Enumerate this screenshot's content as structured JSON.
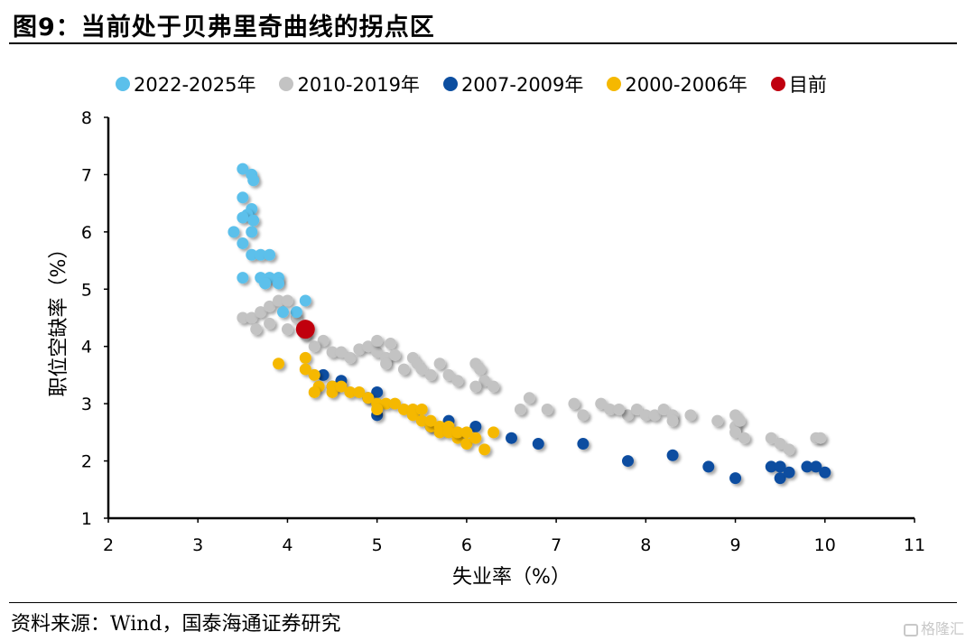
{
  "title": "图9：当前处于贝弗里奇曲线的拐点区",
  "source": "资料来源：Wind，国泰海通证券研究",
  "watermark": "格隆汇",
  "chart_data": {
    "type": "scatter",
    "xlabel": "失业率（%）",
    "ylabel": "职位空缺率（%）",
    "xlim": [
      2,
      11
    ],
    "ylim": [
      1,
      8
    ],
    "xticks": [
      2,
      3,
      4,
      5,
      6,
      7,
      8,
      9,
      10,
      11
    ],
    "yticks": [
      1,
      2,
      3,
      4,
      5,
      6,
      7,
      8
    ],
    "grid": false,
    "legend_position": "top",
    "series": [
      {
        "name": "2022-2025年",
        "color": "#5bc0eb",
        "points": [
          [
            3.5,
            7.1
          ],
          [
            3.6,
            7.0
          ],
          [
            3.62,
            6.9
          ],
          [
            3.5,
            6.6
          ],
          [
            3.6,
            6.4
          ],
          [
            3.55,
            6.3
          ],
          [
            3.5,
            6.25
          ],
          [
            3.62,
            6.2
          ],
          [
            3.4,
            6.0
          ],
          [
            3.6,
            6.0
          ],
          [
            3.5,
            5.8
          ],
          [
            3.6,
            5.6
          ],
          [
            3.7,
            5.6
          ],
          [
            3.8,
            5.6
          ],
          [
            3.5,
            5.2
          ],
          [
            3.7,
            5.2
          ],
          [
            3.8,
            5.2
          ],
          [
            3.9,
            5.2
          ],
          [
            3.75,
            5.1
          ],
          [
            3.9,
            5.1
          ],
          [
            4.2,
            4.8
          ],
          [
            4.1,
            4.6
          ],
          [
            3.95,
            4.6
          ]
        ]
      },
      {
        "name": "2010-2019年",
        "color": "#c3c3c3",
        "points": [
          [
            3.5,
            4.5
          ],
          [
            3.6,
            4.5
          ],
          [
            3.65,
            4.3
          ],
          [
            3.7,
            4.6
          ],
          [
            3.8,
            4.7
          ],
          [
            3.9,
            4.8
          ],
          [
            3.8,
            4.4
          ],
          [
            4.0,
            4.8
          ],
          [
            4.1,
            4.5
          ],
          [
            4.0,
            4.3
          ],
          [
            4.2,
            4.2
          ],
          [
            4.4,
            4.1
          ],
          [
            4.3,
            4.0
          ],
          [
            4.5,
            3.9
          ],
          [
            4.6,
            3.9
          ],
          [
            4.7,
            3.8
          ],
          [
            4.8,
            3.95
          ],
          [
            4.9,
            4.0
          ],
          [
            5.0,
            3.9
          ],
          [
            5.0,
            4.1
          ],
          [
            5.1,
            3.8
          ],
          [
            5.15,
            4.05
          ],
          [
            5.1,
            3.7
          ],
          [
            5.2,
            3.85
          ],
          [
            5.3,
            3.6
          ],
          [
            5.4,
            3.8
          ],
          [
            5.45,
            3.7
          ],
          [
            5.5,
            3.6
          ],
          [
            5.6,
            3.5
          ],
          [
            5.7,
            3.7
          ],
          [
            5.8,
            3.5
          ],
          [
            5.9,
            3.4
          ],
          [
            6.1,
            3.7
          ],
          [
            6.15,
            3.6
          ],
          [
            6.2,
            3.4
          ],
          [
            6.3,
            3.3
          ],
          [
            6.1,
            3.3
          ],
          [
            6.6,
            2.9
          ],
          [
            6.7,
            3.1
          ],
          [
            6.9,
            2.9
          ],
          [
            7.2,
            3.0
          ],
          [
            7.3,
            2.8
          ],
          [
            7.5,
            3.0
          ],
          [
            7.6,
            2.9
          ],
          [
            7.8,
            2.8
          ],
          [
            7.7,
            2.9
          ],
          [
            7.9,
            2.9
          ],
          [
            8.0,
            2.8
          ],
          [
            8.1,
            2.8
          ],
          [
            8.2,
            2.9
          ],
          [
            8.3,
            2.8
          ],
          [
            8.3,
            2.7
          ],
          [
            8.5,
            2.8
          ],
          [
            8.8,
            2.7
          ],
          [
            9.0,
            2.8
          ],
          [
            9.0,
            2.6
          ],
          [
            9.05,
            2.7
          ],
          [
            9.0,
            2.5
          ],
          [
            9.1,
            2.4
          ],
          [
            9.4,
            2.4
          ],
          [
            9.5,
            2.3
          ],
          [
            9.6,
            2.2
          ],
          [
            9.9,
            2.4
          ],
          [
            9.95,
            2.4
          ]
        ]
      },
      {
        "name": "2007-2009年",
        "color": "#0c4ea0",
        "points": [
          [
            4.4,
            3.5
          ],
          [
            4.6,
            3.4
          ],
          [
            4.5,
            3.3
          ],
          [
            4.9,
            3.1
          ],
          [
            5.0,
            3.2
          ],
          [
            5.0,
            2.8
          ],
          [
            5.8,
            2.7
          ],
          [
            5.6,
            2.6
          ],
          [
            6.1,
            2.6
          ],
          [
            6.5,
            2.4
          ],
          [
            6.8,
            2.3
          ],
          [
            7.3,
            2.3
          ],
          [
            7.8,
            2.0
          ],
          [
            8.3,
            2.1
          ],
          [
            8.7,
            1.9
          ],
          [
            9.0,
            1.7
          ],
          [
            9.4,
            1.9
          ],
          [
            9.5,
            1.9
          ],
          [
            9.5,
            1.7
          ],
          [
            9.6,
            1.8
          ],
          [
            9.8,
            1.9
          ],
          [
            9.9,
            1.9
          ],
          [
            10.0,
            1.8
          ]
        ]
      },
      {
        "name": "2000-2006年",
        "color": "#f5b800",
        "points": [
          [
            3.9,
            3.7
          ],
          [
            4.2,
            3.8
          ],
          [
            4.2,
            3.6
          ],
          [
            4.3,
            3.5
          ],
          [
            4.35,
            3.3
          ],
          [
            4.3,
            3.2
          ],
          [
            4.5,
            3.3
          ],
          [
            4.5,
            3.2
          ],
          [
            4.6,
            3.3
          ],
          [
            4.7,
            3.2
          ],
          [
            4.8,
            3.2
          ],
          [
            4.9,
            3.1
          ],
          [
            5.0,
            3.0
          ],
          [
            5.1,
            3.0
          ],
          [
            5.0,
            2.9
          ],
          [
            5.2,
            3.0
          ],
          [
            5.3,
            2.9
          ],
          [
            5.4,
            2.9
          ],
          [
            5.4,
            2.8
          ],
          [
            5.5,
            2.9
          ],
          [
            5.5,
            2.7
          ],
          [
            5.6,
            2.6
          ],
          [
            5.6,
            2.7
          ],
          [
            5.7,
            2.6
          ],
          [
            5.7,
            2.5
          ],
          [
            5.8,
            2.6
          ],
          [
            5.8,
            2.5
          ],
          [
            5.9,
            2.4
          ],
          [
            5.9,
            2.5
          ],
          [
            6.0,
            2.5
          ],
          [
            6.0,
            2.3
          ],
          [
            6.1,
            2.4
          ],
          [
            6.2,
            2.2
          ],
          [
            6.3,
            2.5
          ]
        ]
      },
      {
        "name": "目前",
        "color": "#c0000f",
        "points": [
          [
            4.2,
            4.3
          ]
        ]
      }
    ]
  }
}
